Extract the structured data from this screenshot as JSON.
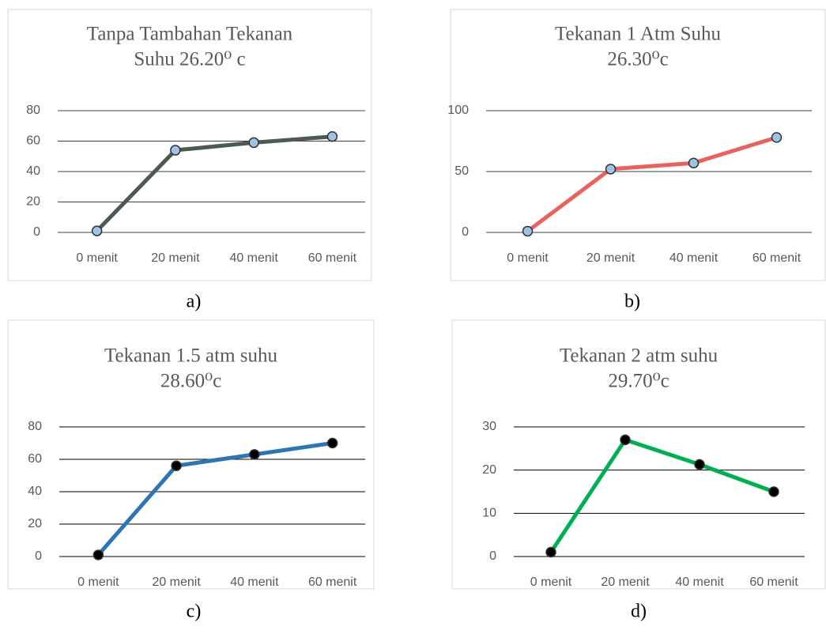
{
  "chart_data": [
    {
      "type": "line",
      "title": [
        "Tanpa Tambahan Tekanan",
        "Suhu 26.20⁰ c"
      ],
      "caption": "a)",
      "categories": [
        "0 menit",
        "20 menit",
        "40 menit",
        "60 menit"
      ],
      "series": [
        {
          "color": "#4d5a50",
          "marker_color": "#9dc3e6",
          "values": [
            1,
            54,
            59,
            63
          ]
        }
      ],
      "ylim": [
        0,
        80
      ],
      "yticks": [
        0,
        20,
        40,
        60,
        80
      ],
      "grid": true
    },
    {
      "type": "line",
      "title": [
        "Tekanan 1 Atm Suhu",
        "26.30⁰c"
      ],
      "caption": "b)",
      "categories": [
        "0 menit",
        "20 menit",
        "40 menit",
        "60 menit"
      ],
      "series": [
        {
          "color": "#e8625f",
          "marker_color": "#9dc3e6",
          "values": [
            1,
            52,
            57,
            78
          ]
        }
      ],
      "ylim": [
        0,
        100
      ],
      "yticks": [
        0,
        50,
        100
      ],
      "grid": true
    },
    {
      "type": "line",
      "title": [
        "Tekanan 1.5 atm suhu",
        "28.60⁰c"
      ],
      "caption": "c)",
      "categories": [
        "0 menit",
        "20 menit",
        "40 menit",
        "60 menit"
      ],
      "series": [
        {
          "color": "#2e75b6",
          "marker_color": "#000000",
          "values": [
            1,
            56,
            63,
            70
          ]
        }
      ],
      "ylim": [
        0,
        80
      ],
      "yticks": [
        0,
        20,
        40,
        60,
        80
      ],
      "grid": true
    },
    {
      "type": "line",
      "title": [
        "Tekanan 2 atm suhu",
        "29.70⁰c"
      ],
      "caption": "d)",
      "categories": [
        "0 menit",
        "20 menit",
        "40 menit",
        "60 menit"
      ],
      "series": [
        {
          "color": "#00b050",
          "marker_color": "#000000",
          "values": [
            1,
            27,
            21.3,
            15
          ]
        }
      ],
      "ylim": [
        0,
        30
      ],
      "yticks": [
        0,
        10,
        20,
        30
      ],
      "grid": true
    }
  ]
}
